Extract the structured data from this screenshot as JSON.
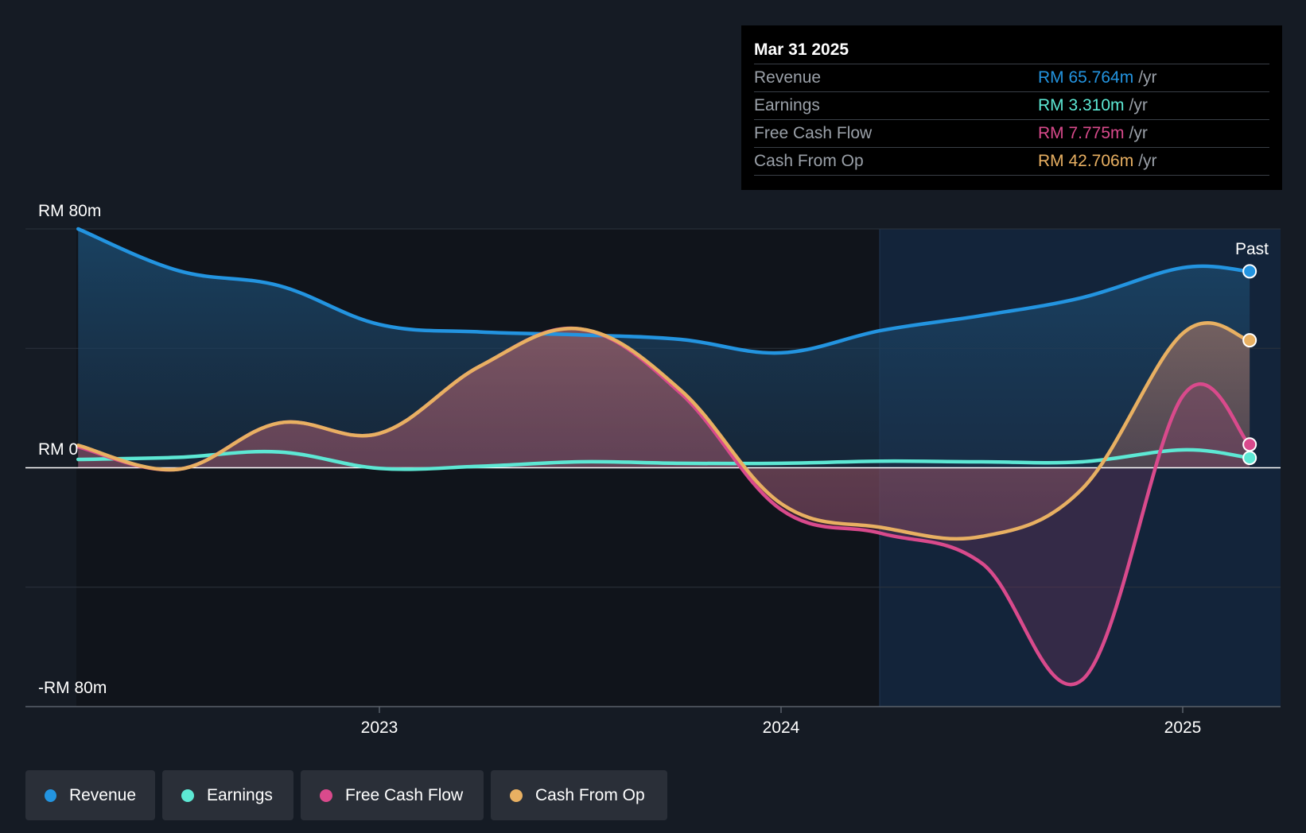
{
  "chart_data": {
    "type": "area",
    "title": "",
    "y_axis": {
      "top_label": "RM 80m",
      "zero_label": "RM 0",
      "bottom_label": "-RM 80m",
      "ylim": [
        -80,
        80
      ]
    },
    "x_ticks": [
      "2023",
      "2024",
      "2025"
    ],
    "region_label": "Past",
    "series": [
      {
        "name": "Revenue",
        "color": "#2394e0",
        "points": [
          [
            "2022-04",
            80
          ],
          [
            "2022-07",
            66
          ],
          [
            "2022-10",
            61
          ],
          [
            "2023-01",
            48
          ],
          [
            "2023-04",
            45.5
          ],
          [
            "2023-07",
            44.5
          ],
          [
            "2023-10",
            43
          ],
          [
            "2024-01",
            38.5
          ],
          [
            "2024-04",
            46
          ],
          [
            "2024-07",
            51
          ],
          [
            "2024-10",
            57
          ],
          [
            "2025-01",
            67
          ],
          [
            "2025-03",
            65.8
          ]
        ]
      },
      {
        "name": "Earnings",
        "color": "#5de8d4",
        "points": [
          [
            "2022-04",
            2.8
          ],
          [
            "2022-07",
            3.5
          ],
          [
            "2022-10",
            5.3
          ],
          [
            "2023-01",
            -0.2
          ],
          [
            "2023-04",
            0.5
          ],
          [
            "2023-07",
            2
          ],
          [
            "2023-10",
            1.5
          ],
          [
            "2024-01",
            1.5
          ],
          [
            "2024-04",
            2.2
          ],
          [
            "2024-07",
            2
          ],
          [
            "2024-10",
            2
          ],
          [
            "2025-01",
            6
          ],
          [
            "2025-03",
            3.3
          ]
        ]
      },
      {
        "name": "Free Cash Flow",
        "color": "#d94a8c",
        "points": [
          [
            "2022-04",
            7
          ],
          [
            "2022-07",
            -0.5
          ],
          [
            "2022-10",
            15
          ],
          [
            "2023-01",
            11.5
          ],
          [
            "2023-04",
            34
          ],
          [
            "2023-07",
            46.5
          ],
          [
            "2023-10",
            25
          ],
          [
            "2024-01",
            -14
          ],
          [
            "2024-04",
            -22
          ],
          [
            "2024-07",
            -32
          ],
          [
            "2024-10",
            -71
          ],
          [
            "2025-01",
            24
          ],
          [
            "2025-03",
            7.8
          ]
        ]
      },
      {
        "name": "Cash From Op",
        "color": "#e8b062",
        "points": [
          [
            "2022-04",
            7.5
          ],
          [
            "2022-07",
            -0.5
          ],
          [
            "2022-10",
            15
          ],
          [
            "2023-01",
            11.5
          ],
          [
            "2023-04",
            34
          ],
          [
            "2023-07",
            46.5
          ],
          [
            "2023-10",
            26
          ],
          [
            "2024-01",
            -12
          ],
          [
            "2024-04",
            -20
          ],
          [
            "2024-07",
            -23
          ],
          [
            "2024-10",
            -7
          ],
          [
            "2025-01",
            45
          ],
          [
            "2025-03",
            42.7
          ]
        ]
      }
    ],
    "tooltip": {
      "date": "Mar 31 2025",
      "rows": [
        {
          "label": "Revenue",
          "value": "RM 65.764m",
          "unit": "/yr",
          "color": "#2394e0"
        },
        {
          "label": "Earnings",
          "value": "RM 3.310m",
          "unit": "/yr",
          "color": "#5de8d4"
        },
        {
          "label": "Free Cash Flow",
          "value": "RM 7.775m",
          "unit": "/yr",
          "color": "#d94a8c"
        },
        {
          "label": "Cash From Op",
          "value": "RM 42.706m",
          "unit": "/yr",
          "color": "#e8b062"
        }
      ]
    },
    "legend": [
      {
        "label": "Revenue",
        "color": "#2394e0"
      },
      {
        "label": "Earnings",
        "color": "#5de8d4"
      },
      {
        "label": "Free Cash Flow",
        "color": "#d94a8c"
      },
      {
        "label": "Cash From Op",
        "color": "#e8b062"
      }
    ]
  }
}
